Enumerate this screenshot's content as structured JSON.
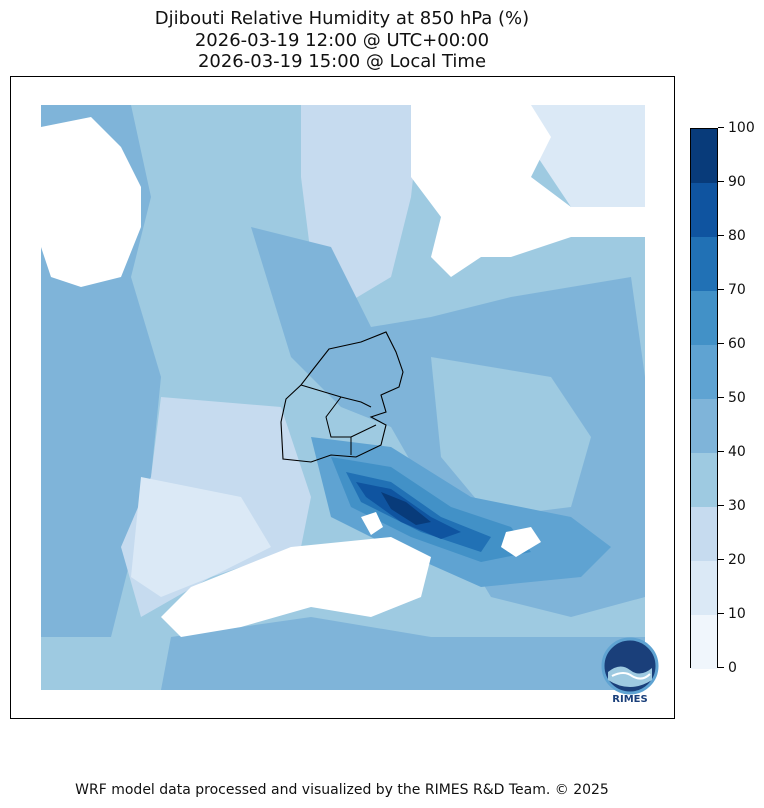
{
  "title": {
    "line1": "Djibouti Relative Humidity at 850 hPa (%)",
    "line2": "2026-03-19 12:00 @ UTC+00:00",
    "line3": "2026-03-19 15:00 @ Local Time"
  },
  "colorbar": {
    "min": 0,
    "max": 100,
    "levels": [
      0,
      10,
      20,
      30,
      40,
      50,
      60,
      70,
      80,
      90,
      100
    ],
    "labels": [
      "0",
      "10",
      "20",
      "30",
      "40",
      "50",
      "60",
      "70",
      "80",
      "90",
      "100"
    ],
    "colors": [
      "#f0f6fc",
      "#dbe9f6",
      "#c6dbef",
      "#9ecae1",
      "#7fb4d9",
      "#5fa3d2",
      "#4291c7",
      "#2171b5",
      "#0f54a0",
      "#083b7a"
    ]
  },
  "logo": {
    "text": "RIMES"
  },
  "footer": "WRF model data processed and visualized by the RIMES R&D Team. © 2025"
}
